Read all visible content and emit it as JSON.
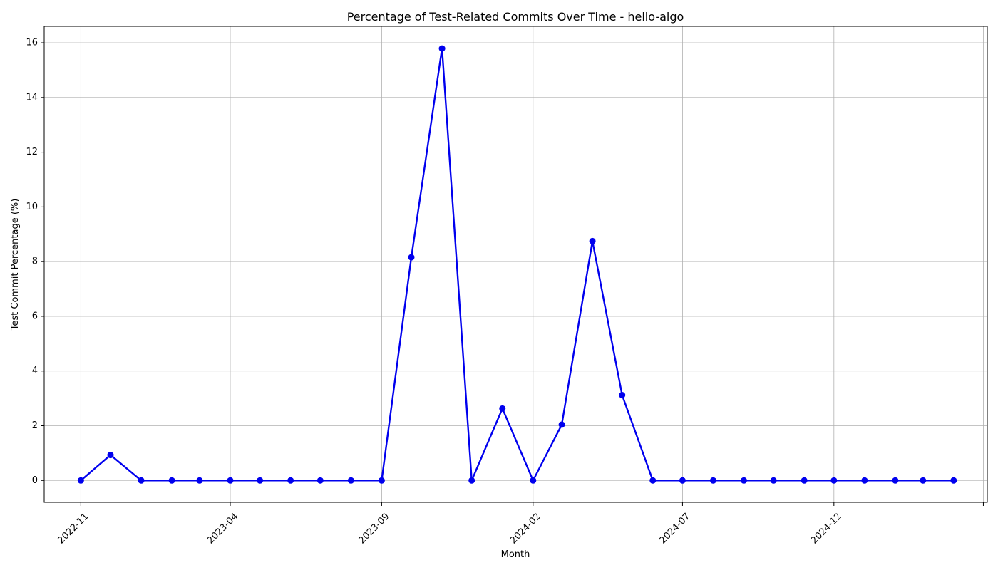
{
  "chart_data": {
    "type": "line",
    "title": "Percentage of Test-Related Commits Over Time - hello-algo",
    "xlabel": "Month",
    "ylabel": "Test Commit Percentage (%)",
    "grid": true,
    "xlim": [
      "2022-09-25",
      "2025-05-05"
    ],
    "ylim": [
      -0.8,
      16.6
    ],
    "x_ticks": [
      "2022-11",
      "2023-04",
      "2023-09",
      "2024-02",
      "2024-07",
      "2024-12",
      "2025-05"
    ],
    "x_tick_labels": [
      "2022-11",
      "2023-04",
      "2023-09",
      "2024-02",
      "2024-07",
      "2024-12",
      ""
    ],
    "y_ticks": [
      0,
      2,
      4,
      6,
      8,
      10,
      12,
      14,
      16
    ],
    "colors": {
      "series": "#0000ee",
      "grid": "#b0b0b0",
      "axis": "#000000"
    },
    "series": [
      {
        "marker": "circle",
        "x": [
          "2022-11",
          "2022-12",
          "2023-01",
          "2023-02",
          "2023-03",
          "2023-04",
          "2023-05",
          "2023-06",
          "2023-07",
          "2023-08",
          "2023-09",
          "2023-10",
          "2023-11",
          "2023-12",
          "2024-01",
          "2024-02",
          "2024-03",
          "2024-04",
          "2024-05",
          "2024-06",
          "2024-07",
          "2024-08",
          "2024-09",
          "2024-10",
          "2024-11",
          "2024-12",
          "2025-01",
          "2025-02",
          "2025-03",
          "2025-04"
        ],
        "y": [
          0,
          0.93,
          0,
          0,
          0,
          0,
          0,
          0,
          0,
          0,
          0,
          8.16,
          15.79,
          0,
          2.63,
          0,
          2.04,
          8.75,
          3.12,
          0,
          0,
          0,
          0,
          0,
          0,
          0,
          0,
          0,
          0,
          0
        ]
      }
    ]
  }
}
